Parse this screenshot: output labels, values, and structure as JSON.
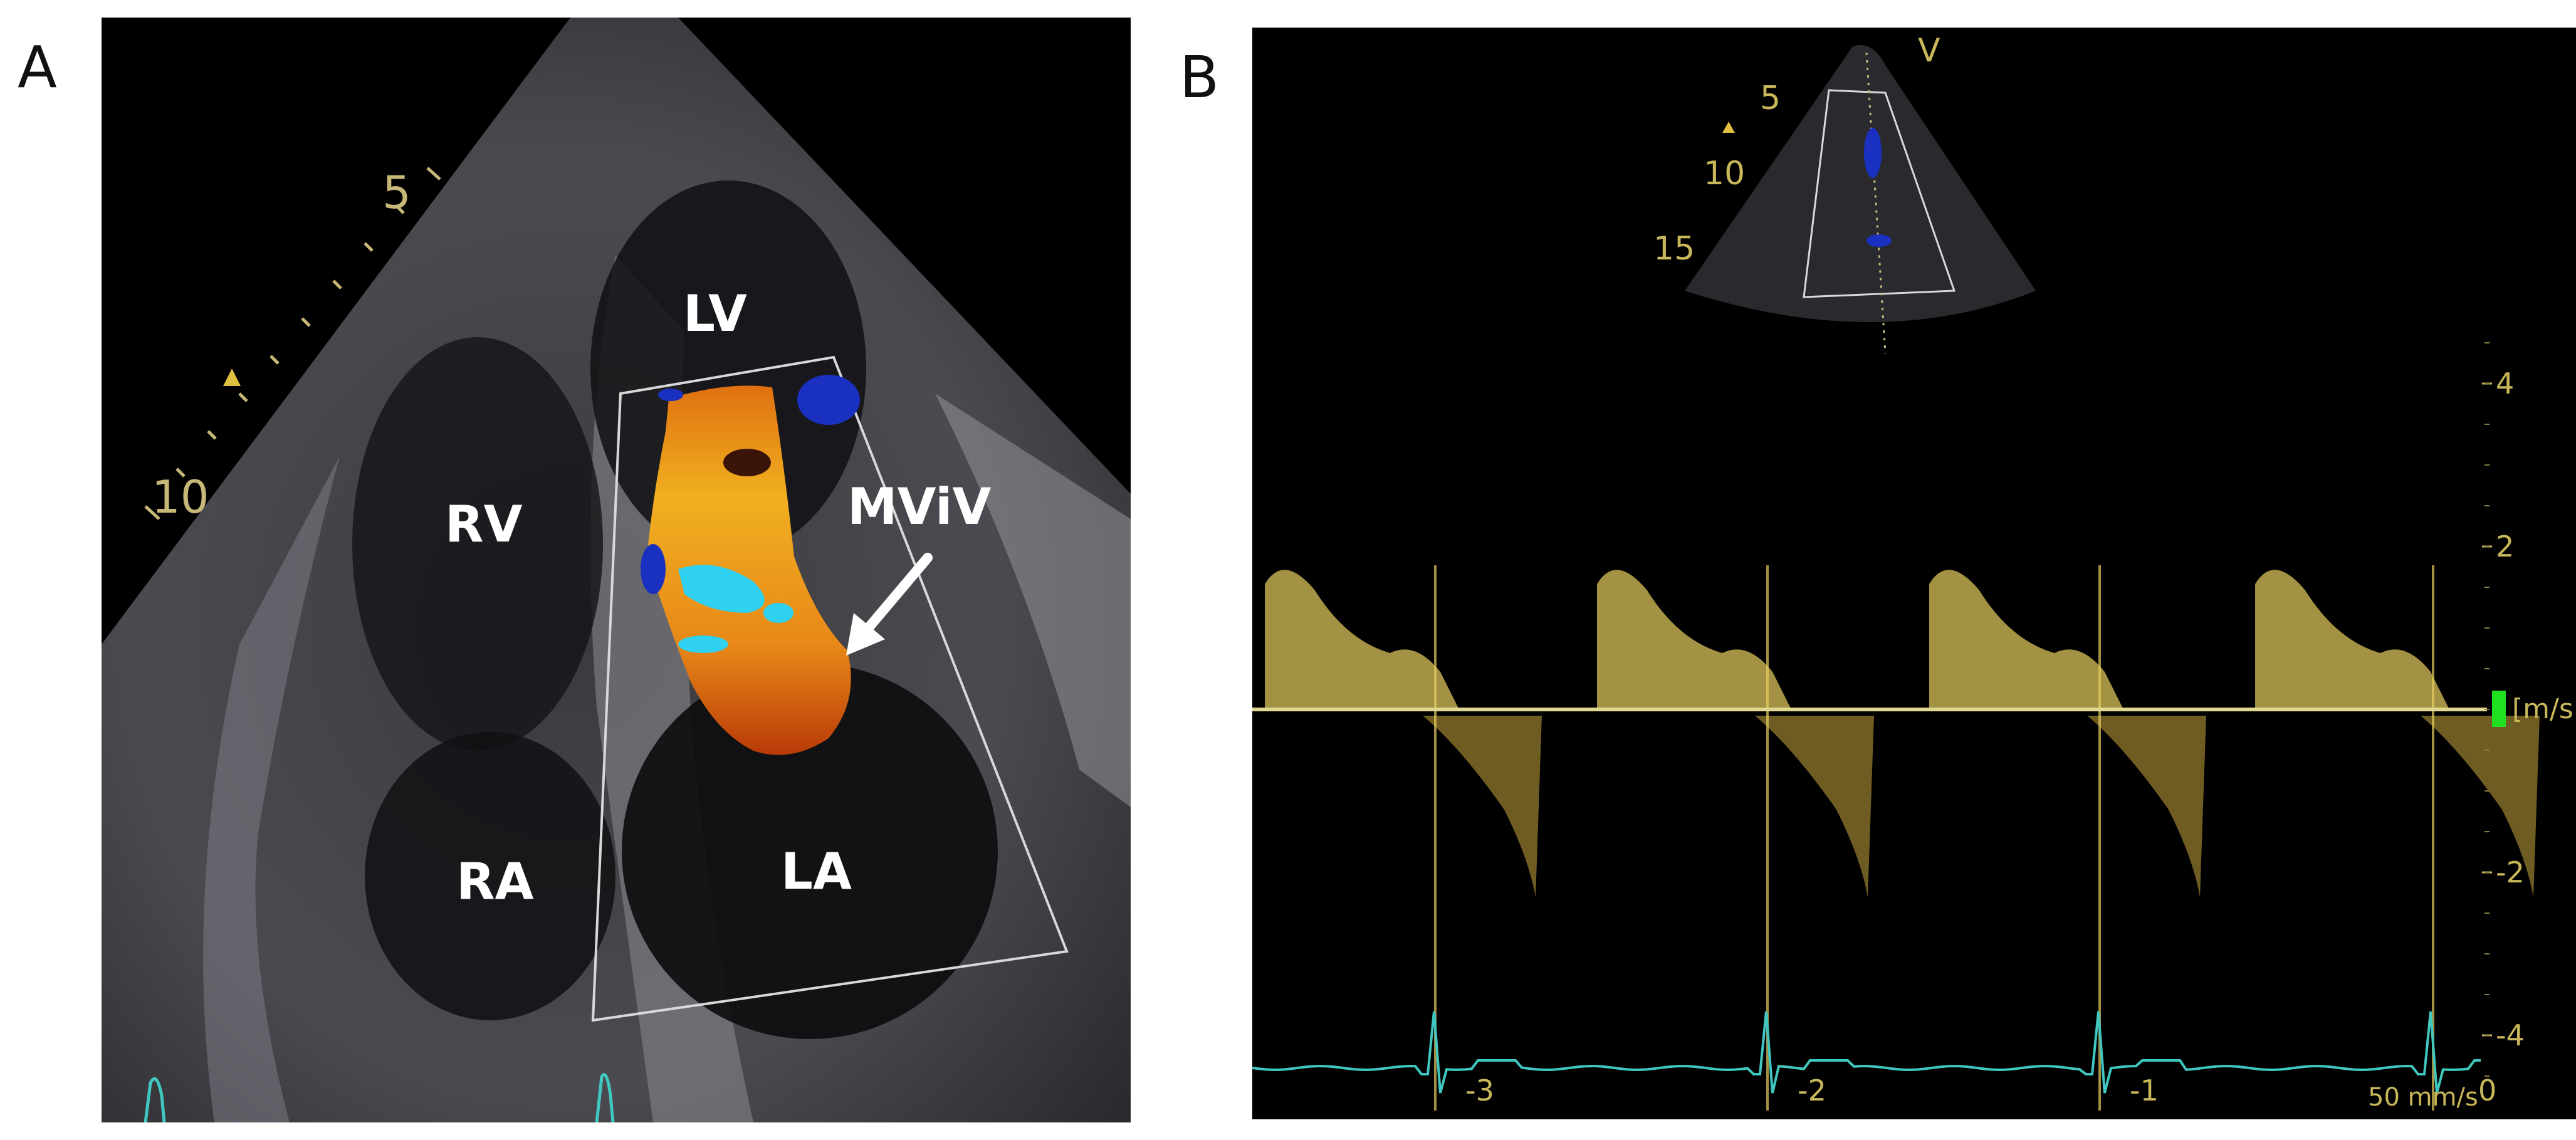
{
  "panel_a": {
    "letter": "A",
    "depth_labels": [
      "5",
      "10"
    ],
    "chambers": {
      "lv": "LV",
      "rv": "RV",
      "ra": "RA",
      "la": "LA"
    },
    "annotation": "MViV"
  },
  "panel_b": {
    "letter": "B",
    "mode_marker": "V",
    "depth_labels": [
      "5",
      "10",
      "15"
    ],
    "velocity_ticks": [
      "4",
      "2",
      "-2",
      "-4"
    ],
    "velocity_unit": "[m/s]",
    "time_ticks": [
      "-3",
      "-2",
      "-1",
      "0"
    ],
    "sweep_speed": "50 mm/s"
  },
  "colors": {
    "spectral": "#e8d060",
    "scale_text": "#c9b85a",
    "ecg": "#40c8c0",
    "sector_outline": "#d8d8d8",
    "doppler_red": "#d84a10",
    "doppler_yellow": "#f0b020",
    "doppler_blue": "#1a30c0",
    "doppler_cyan": "#30d0f0",
    "marker_green": "#20e020"
  }
}
